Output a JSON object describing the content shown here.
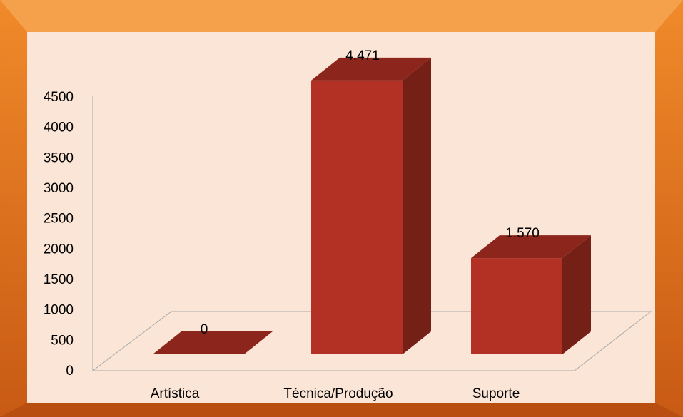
{
  "chart_data": {
    "type": "bar3d",
    "categories": [
      "Artística",
      "Técnica/Produção",
      "Suporte"
    ],
    "values": [
      0,
      4471,
      1570
    ],
    "value_labels": [
      "0",
      "4.471",
      "1.570"
    ],
    "color": "#b33124",
    "ylim": [
      0,
      4500
    ],
    "yticks": [
      0,
      500,
      1000,
      1500,
      2000,
      2500,
      3000,
      3500,
      4000,
      4500
    ],
    "grid": false
  }
}
